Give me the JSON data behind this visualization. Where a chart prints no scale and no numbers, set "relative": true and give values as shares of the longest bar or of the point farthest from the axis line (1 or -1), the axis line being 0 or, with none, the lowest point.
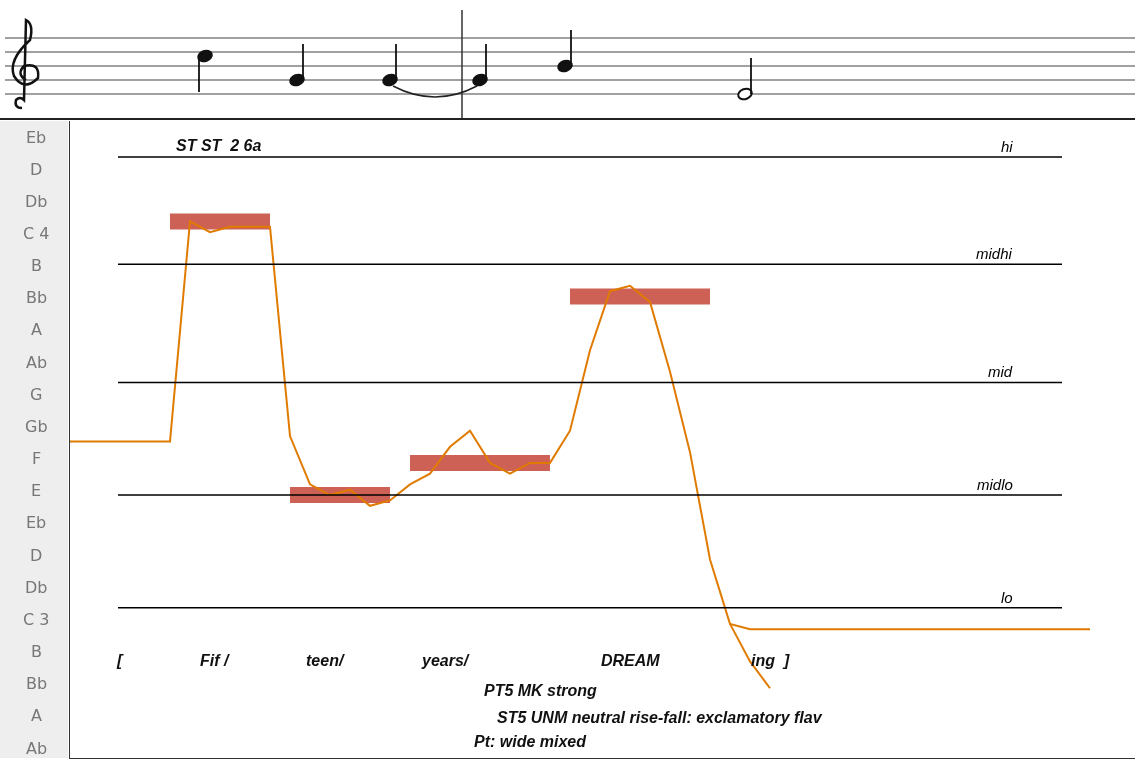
{
  "chart_data": {
    "type": "line",
    "relative": true,
    "categories": [
      null,
      null,
      null,
      null,
      null,
      null,
      null,
      null,
      null,
      null,
      null,
      null,
      null,
      null,
      null,
      null,
      null,
      null,
      null,
      null,
      null,
      null,
      null,
      null,
      null,
      null,
      null,
      null,
      null,
      null,
      null,
      null,
      null,
      null,
      null,
      null,
      null,
      null,
      null,
      null,
      null,
      null,
      null,
      null,
      null,
      null,
      null,
      null,
      null,
      null,
      null,
      null
    ],
    "series": [
      {
        "type": "step",
        "color": "#c0392b",
        "values": [
          null,
          null,
          null,
          null,
          null,
          1.0,
          1.0,
          1.0,
          1.0,
          1.0,
          1.0,
          null,
          null,
          null,
          null,
          null,
          null,
          null,
          null,
          null,
          null,
          null,
          null,
          null,
          null,
          null,
          null,
          null,
          null,
          null,
          null,
          null,
          null,
          null,
          null,
          null,
          null,
          null,
          null,
          null,
          null,
          null,
          null,
          null,
          null,
          null,
          null,
          null,
          null,
          null,
          null,
          null
        ]
      },
      {
        "type": "step",
        "color": "#c0392b",
        "values": [
          null,
          null,
          null,
          null,
          null,
          null,
          null,
          null,
          null,
          null,
          null,
          0.49,
          0.49,
          0.49,
          0.49,
          0.49,
          0.49,
          null,
          null,
          null,
          null,
          null,
          null,
          null,
          null,
          null,
          null,
          null,
          null,
          null,
          null,
          null,
          null,
          null,
          null,
          null,
          null,
          null,
          null,
          null,
          null,
          null,
          null,
          null,
          null,
          null,
          null,
          null,
          null,
          null,
          null,
          null
        ]
      },
      {
        "type": "step",
        "color": "#c0392b",
        "values": [
          null,
          null,
          null,
          null,
          null,
          null,
          null,
          null,
          null,
          null,
          null,
          null,
          null,
          null,
          null,
          null,
          null,
          0.55,
          0.55,
          0.55,
          0.55,
          0.55,
          0.55,
          0.55,
          0.55,
          null,
          null,
          null,
          null,
          null,
          null,
          null,
          null,
          null,
          null,
          null,
          null,
          null,
          null,
          null,
          null,
          null,
          null,
          null,
          null,
          null,
          null,
          null,
          null,
          null,
          null,
          null
        ]
      },
      {
        "type": "step",
        "color": "#c0392b",
        "values": [
          null,
          null,
          null,
          null,
          null,
          null,
          null,
          null,
          null,
          null,
          null,
          null,
          null,
          null,
          null,
          null,
          null,
          null,
          null,
          null,
          null,
          null,
          null,
          null,
          null,
          0.86,
          0.86,
          0.86,
          0.86,
          0.86,
          0.86,
          0.86,
          0.86,
          null,
          null,
          null,
          null,
          null,
          null,
          null,
          null,
          null,
          null,
          null,
          null,
          null,
          null,
          null,
          null,
          null,
          null,
          null
        ]
      },
      {
        "color": "#e07b00",
        "values": [
          0.59,
          0.59,
          0.59,
          0.59,
          0.59,
          0.59,
          1.0,
          0.98,
          0.99,
          0.99,
          0.99,
          0.6,
          0.51,
          0.49,
          0.5,
          0.47,
          0.48,
          0.51,
          0.53,
          0.58,
          0.61,
          0.55,
          0.53,
          0.55,
          0.55,
          0.61,
          0.76,
          0.87,
          0.88,
          0.85,
          0.72,
          0.57,
          0.37,
          0.25,
          0.24,
          0.24,
          0.24,
          0.24,
          0.24,
          0.24,
          0.24,
          0.24,
          0.24,
          0.24,
          0.24,
          0.24,
          0.24,
          0.24,
          0.24,
          0.24,
          0.24,
          0.24
        ]
      },
      {
        "color": "#e07b00",
        "values": [
          null,
          null,
          null,
          null,
          null,
          null,
          null,
          null,
          null,
          null,
          null,
          null,
          null,
          null,
          null,
          null,
          null,
          null,
          null,
          null,
          null,
          null,
          null,
          null,
          null,
          null,
          null,
          null,
          null,
          null,
          null,
          null,
          null,
          0.25,
          0.18,
          0.13,
          null,
          null,
          null,
          null,
          null,
          null,
          null,
          null,
          null,
          null,
          null,
          null,
          null,
          null,
          null,
          null
        ]
      }
    ],
    "ref_lines": [
      {
        "axis": "y",
        "value": 1.12,
        "label": "hi",
        "color": "#000000"
      },
      {
        "axis": "y",
        "value": 0.92,
        "label": "midhi",
        "color": "#000000"
      },
      {
        "axis": "y",
        "value": 0.7,
        "label": "mid",
        "color": "#000000"
      },
      {
        "axis": "y",
        "value": 0.49,
        "label": "midlo",
        "color": "#000000"
      },
      {
        "axis": "y",
        "value": 0.28,
        "label": "lo",
        "color": "#000000"
      }
    ],
    "annotations": [
      "ST ST  2 6a",
      "[",
      "Fif /",
      "teen/",
      "years/",
      "DREAM",
      "ing  ]",
      "PT5 MK strong",
      "ST5 UNM neutral rise-fall: exclamatory flav",
      "Pt: wide mixed",
      "Eb",
      "D",
      "Db",
      "C 4",
      "B",
      "Bb",
      "A",
      "Ab",
      "G",
      "Gb",
      "F",
      "E",
      "Eb",
      "D",
      "Db",
      "C 3",
      "B",
      "Bb",
      "A",
      "Ab"
    ]
  }
}
